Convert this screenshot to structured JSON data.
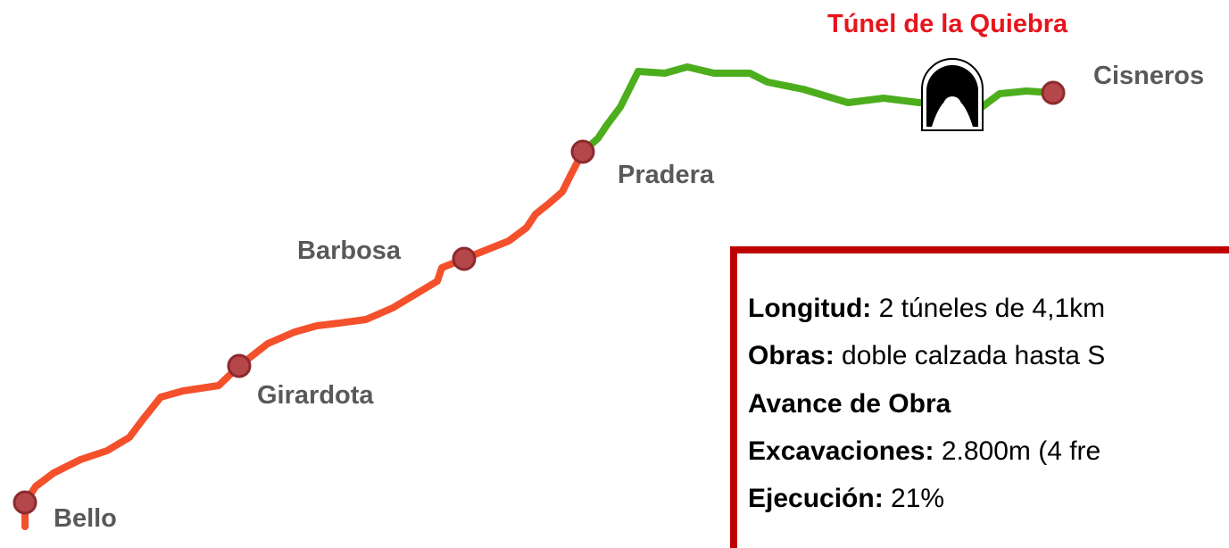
{
  "title": "Túnel de la Quiebra",
  "stations": [
    "Bello",
    "Girardota",
    "Barbosa",
    "Pradera",
    "Cisneros"
  ],
  "info": [
    {
      "label": "Longitud:",
      "value": "2 túneles de 4,1km"
    },
    {
      "label": "Obras:",
      "value": "doble calzada hasta S"
    },
    {
      "label": "Avance de Obra"
    },
    {
      "label": "Excavaciones:",
      "value": "2.800m (4 fre"
    },
    {
      "label": "Ejecución:",
      "value": "21%"
    }
  ]
}
